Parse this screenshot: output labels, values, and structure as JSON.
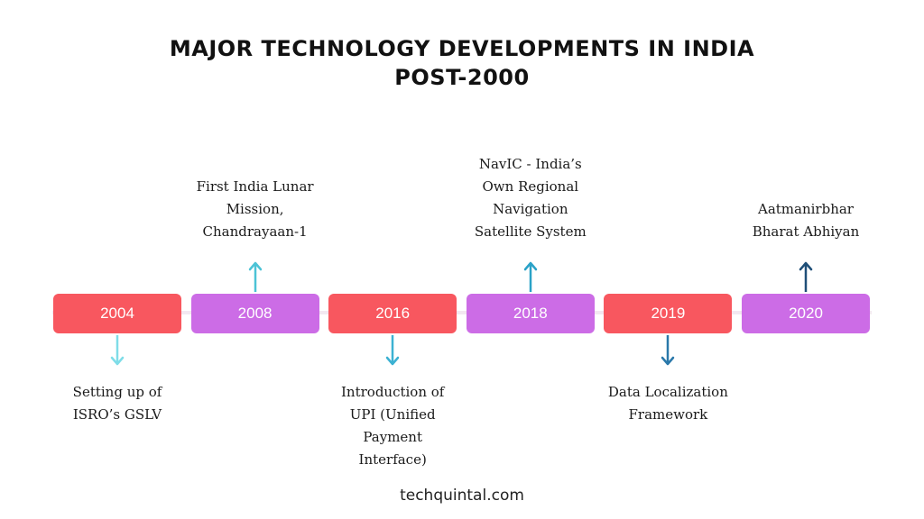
{
  "title": {
    "line1": "MAJOR TECHNOLOGY DEVELOPMENTS IN INDIA",
    "line2": "POST-2000"
  },
  "timeline": [
    {
      "year": "2004",
      "color": "#f8575f",
      "direction": "down",
      "arrow_color": "#7fdde8",
      "label": [
        "Setting up of",
        "ISRO’s GSLV"
      ]
    },
    {
      "year": "2008",
      "color": "#cc6ce6",
      "direction": "up",
      "arrow_color": "#4cc3d6",
      "label": [
        "First India Lunar",
        "Mission,",
        "Chandrayaan-1"
      ]
    },
    {
      "year": "2016",
      "color": "#f8575f",
      "direction": "down",
      "arrow_color": "#3bb1d2",
      "label": [
        "Introduction of",
        "UPI (Unified",
        "Payment",
        "Interface)"
      ]
    },
    {
      "year": "2018",
      "color": "#cc6ce6",
      "direction": "up",
      "arrow_color": "#2aa2c7",
      "label": [
        "NavIC - India’s",
        "Own Regional",
        "Navigation",
        "Satellite System"
      ]
    },
    {
      "year": "2019",
      "color": "#f8575f",
      "direction": "down",
      "arrow_color": "#2a78aa",
      "label": [
        "Data Localization",
        "Framework"
      ]
    },
    {
      "year": "2020",
      "color": "#cc6ce6",
      "direction": "up",
      "arrow_color": "#1f4f78",
      "label": [
        "Aatmanirbhar",
        "Bharat Abhiyan"
      ]
    }
  ],
  "footer": "techquintal.com"
}
